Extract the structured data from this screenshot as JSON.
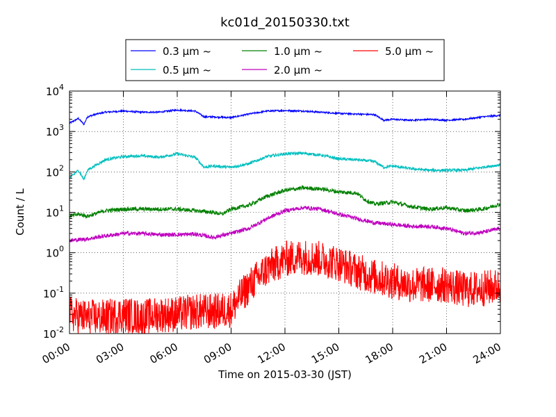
{
  "chart_data": {
    "type": "line",
    "title": "kc01d_20150330.txt",
    "xlabel": "Time on 2015-03-30 (JST)",
    "ylabel": "Count / L",
    "yscale": "log",
    "xlim": [
      "00:00",
      "24:00"
    ],
    "ylim": [
      0.01,
      10000
    ],
    "x_ticks": [
      "00:00",
      "03:00",
      "06:00",
      "09:00",
      "12:00",
      "15:00",
      "18:00",
      "21:00",
      "24:00"
    ],
    "y_ticks": [
      {
        "value": 0.01,
        "base": "10",
        "exp": "-2"
      },
      {
        "value": 0.1,
        "base": "10",
        "exp": "-1"
      },
      {
        "value": 1,
        "base": "10",
        "exp": "0"
      },
      {
        "value": 10,
        "base": "10",
        "exp": "1"
      },
      {
        "value": 100,
        "base": "10",
        "exp": "2"
      },
      {
        "value": 1000,
        "base": "10",
        "exp": "3"
      },
      {
        "value": 10000,
        "base": "10",
        "exp": "4"
      }
    ],
    "grid": true,
    "legend_position": "top",
    "series": [
      {
        "name": "0.3 μm ~",
        "color": "#0000ff",
        "x": [
          0,
          0.5,
          0.8,
          1,
          1.5,
          2,
          3,
          4,
          5,
          6,
          7,
          7.5,
          8,
          9,
          10,
          11,
          12,
          13,
          14,
          15,
          16,
          17,
          17.5,
          18,
          19,
          20,
          21,
          22,
          23,
          24
        ],
        "y": [
          1600,
          2100,
          1500,
          2300,
          2700,
          3000,
          3200,
          3000,
          3000,
          3400,
          3200,
          2300,
          2300,
          2200,
          2700,
          3200,
          3300,
          3200,
          3000,
          2800,
          2700,
          2600,
          1900,
          2000,
          1900,
          2000,
          1900,
          2000,
          2300,
          2500
        ]
      },
      {
        "name": "0.5 μm ~",
        "color": "#00bfbf",
        "x": [
          0,
          0.5,
          0.8,
          1,
          1.5,
          2,
          3,
          4,
          5,
          6,
          7,
          7.5,
          8,
          9,
          10,
          11,
          12,
          13,
          14,
          15,
          16,
          17,
          17.5,
          18,
          19,
          20,
          21,
          22,
          23,
          24
        ],
        "y": [
          70,
          110,
          65,
          110,
          150,
          200,
          240,
          250,
          230,
          280,
          230,
          130,
          140,
          130,
          160,
          240,
          280,
          290,
          260,
          210,
          200,
          180,
          130,
          140,
          120,
          110,
          110,
          110,
          130,
          150
        ]
      },
      {
        "name": "1.0 μm ~",
        "color": "#008000",
        "x": [
          0,
          0.5,
          1,
          2,
          3,
          4,
          5,
          6,
          7,
          8,
          8.5,
          9,
          10,
          11,
          12,
          13,
          14,
          15,
          16,
          16.5,
          17,
          18,
          19,
          20,
          21,
          22,
          23,
          24
        ],
        "y": [
          8,
          9,
          8,
          11,
          12,
          12,
          12,
          12,
          11,
          10,
          9,
          12,
          15,
          25,
          35,
          40,
          38,
          32,
          30,
          20,
          16,
          18,
          14,
          12,
          13,
          11,
          12,
          16
        ]
      },
      {
        "name": "2.0 μm ~",
        "color": "#bf00bf",
        "x": [
          0,
          1,
          2,
          3,
          4,
          5,
          6,
          7,
          8,
          9,
          10,
          11,
          12,
          13,
          14,
          15,
          16,
          17,
          18,
          19,
          20,
          21,
          22,
          23,
          24
        ],
        "y": [
          2,
          2.2,
          2.6,
          3,
          3,
          2.8,
          2.8,
          2.9,
          2.4,
          3,
          4,
          7,
          11,
          13,
          12,
          9,
          7,
          5.5,
          5,
          4.5,
          4.5,
          4,
          3,
          3.2,
          4
        ]
      },
      {
        "name": "5.0 μm ~",
        "color": "#ff0000",
        "x": [
          0,
          1,
          2,
          3,
          4,
          5,
          6,
          7,
          8,
          9,
          9.5,
          10,
          11,
          12,
          13,
          14,
          15,
          16,
          17,
          18,
          19,
          20,
          21,
          22,
          23,
          24
        ],
        "y": [
          0.03,
          0.025,
          0.025,
          0.03,
          0.025,
          0.03,
          0.03,
          0.035,
          0.035,
          0.04,
          0.08,
          0.15,
          0.4,
          0.7,
          0.8,
          0.7,
          0.55,
          0.35,
          0.25,
          0.2,
          0.16,
          0.16,
          0.16,
          0.12,
          0.13,
          0.15
        ]
      }
    ]
  }
}
